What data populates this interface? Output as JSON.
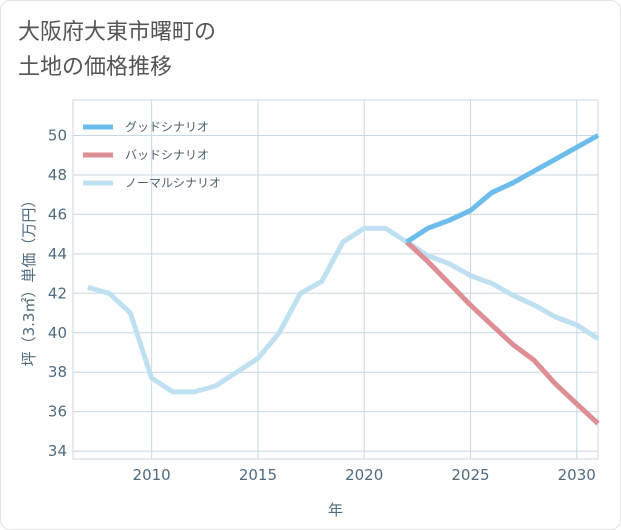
{
  "title_lines": [
    "大阪府大東市曙町の",
    "土地の価格推移"
  ],
  "colors": {
    "good": "#6cbcec",
    "bad": "#de8e95",
    "normal": "#bfe0f0",
    "grid": "#c8d8e4",
    "tick_text": "#4f6b80"
  },
  "chart_data": {
    "type": "line",
    "title": "大阪府大東市曙町の土地の価格推移",
    "xlabel": "年",
    "ylabel": "坪（3.3㎡）単価（万円）",
    "xlim": [
      2006.3,
      2031
    ],
    "ylim": [
      33.6,
      51.8
    ],
    "x_ticks": [
      2010,
      2015,
      2020,
      2025,
      2030
    ],
    "y_ticks": [
      34,
      36,
      38,
      40,
      42,
      44,
      46,
      48,
      50
    ],
    "grid": true,
    "legend_position": "top-left",
    "series": [
      {
        "name": "グッドシナリオ",
        "color": "#6cbcec",
        "x": [
          2022,
          2023,
          2024,
          2025,
          2026,
          2027,
          2028,
          2029,
          2030,
          2031
        ],
        "y": [
          44.6,
          45.3,
          45.7,
          46.2,
          47.1,
          47.6,
          48.2,
          48.8,
          49.4,
          50.0
        ]
      },
      {
        "name": "バッドシナリオ",
        "color": "#de8e95",
        "x": [
          2022,
          2023,
          2024,
          2025,
          2026,
          2027,
          2028,
          2029,
          2030,
          2031
        ],
        "y": [
          44.6,
          43.6,
          42.5,
          41.4,
          40.4,
          39.4,
          38.6,
          37.4,
          36.4,
          35.4
        ]
      },
      {
        "name": "ノーマルシナリオ",
        "color": "#bfe0f0",
        "x": [
          2007,
          2008,
          2009,
          2010,
          2011,
          2012,
          2013,
          2014,
          2015,
          2016,
          2017,
          2018,
          2019,
          2020,
          2021,
          2022,
          2023,
          2024,
          2025,
          2026,
          2027,
          2028,
          2029,
          2030,
          2031
        ],
        "y": [
          42.3,
          42.0,
          41.0,
          37.7,
          37.0,
          37.0,
          37.3,
          38.0,
          38.7,
          40.0,
          42.0,
          42.6,
          44.6,
          45.3,
          45.3,
          44.6,
          43.9,
          43.5,
          42.9,
          42.5,
          41.9,
          41.4,
          40.8,
          40.4,
          39.7
        ]
      }
    ]
  }
}
